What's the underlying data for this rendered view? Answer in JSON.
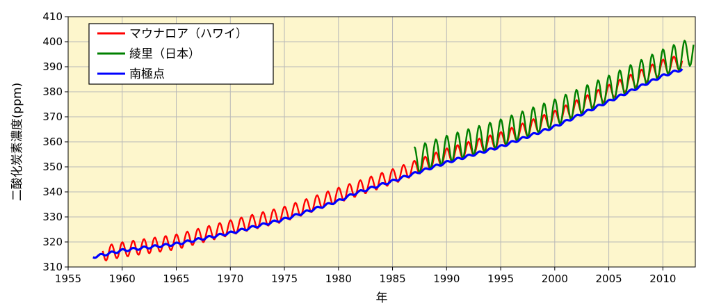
{
  "chart_data": {
    "type": "line",
    "xlabel": "年",
    "ylabel": "二酸化炭素濃度(ppm)",
    "xlim": [
      1955,
      2013
    ],
    "ylim": [
      310,
      410
    ],
    "x_ticks": [
      1955,
      1960,
      1965,
      1970,
      1975,
      1980,
      1985,
      1990,
      1995,
      2000,
      2005,
      2010
    ],
    "x_tick_labels": [
      "1955",
      "1960",
      "1965",
      "1970",
      "1975",
      "1980",
      "1985",
      "1990",
      "1995",
      "2000",
      "2005",
      "2010"
    ],
    "y_ticks": [
      310,
      320,
      330,
      340,
      350,
      360,
      370,
      380,
      390,
      400,
      410
    ],
    "y_tick_labels": [
      "310",
      "320",
      "330",
      "340",
      "350",
      "360",
      "370",
      "380",
      "390",
      "400",
      "410"
    ],
    "grid": true,
    "legend_position": "top-left",
    "background_color": "#fdf6cc",
    "series": [
      {
        "name": "マウナロア（ハワイ）",
        "color": "#ff0000",
        "x": [
          1958.2,
          1960,
          1965,
          1970,
          1975,
          1980,
          1985,
          1990,
          1995,
          2000,
          2005,
          2010,
          2011.8
        ],
        "trend": [
          315.3,
          316.9,
          320.0,
          325.7,
          331.1,
          338.7,
          346.1,
          354.4,
          360.9,
          369.5,
          379.8,
          389.9,
          392.0
        ],
        "amplitude": 3.0
      },
      {
        "name": "綾里（日本）",
        "color": "#008000",
        "x": [
          1987.0,
          1990,
          1995,
          2000,
          2005,
          2010,
          2012.9
        ],
        "trend": [
          352.5,
          357.0,
          363.5,
          371.5,
          381.0,
          391.5,
          396.5
        ],
        "amplitude": 5.5
      },
      {
        "name": "南極点",
        "color": "#0000ff",
        "x": [
          1957.3,
          1960,
          1965,
          1970,
          1975,
          1980,
          1981.5,
          1985,
          1990,
          1995,
          2000,
          2005,
          2010,
          2011.8
        ],
        "trend": [
          314.0,
          316.6,
          319.2,
          323.6,
          329.1,
          336.4,
          339.4,
          344.3,
          351.8,
          358.1,
          366.1,
          376.2,
          386.4,
          389.0
        ],
        "amplitude": 0.5
      }
    ]
  }
}
